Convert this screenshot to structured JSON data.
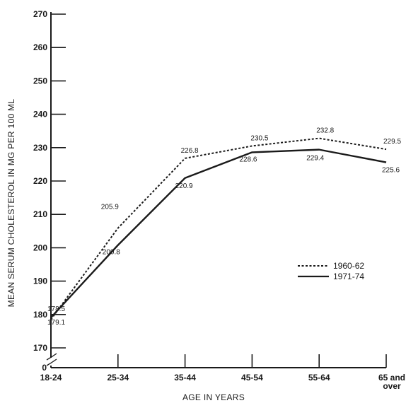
{
  "chart_data": {
    "type": "line",
    "xlabel": "AGE IN YEARS",
    "ylabel": "MEAN SERUM CHOLESTEROL IN MG PER 100 ML",
    "categories": [
      "18-24",
      "25-34",
      "35-44",
      "45-54",
      "55-64",
      "65 and over"
    ],
    "y_ticks": [
      "170",
      "180",
      "190",
      "200",
      "210",
      "220",
      "230",
      "240",
      "250",
      "260",
      "270"
    ],
    "y_zero_label": "0",
    "ylim": [
      170,
      270
    ],
    "axis_break": true,
    "grid": false,
    "legend_position": "right, middle",
    "series": [
      {
        "name": "1960-62",
        "style": "dotted",
        "values": [
          178.5,
          205.9,
          226.8,
          230.5,
          232.8,
          229.5
        ],
        "labels": [
          "178.5",
          "205.9",
          "226.8",
          "230.5",
          "232.8",
          "229.5"
        ]
      },
      {
        "name": "1971-74",
        "style": "solid",
        "values": [
          179.1,
          200.8,
          220.9,
          228.6,
          229.4,
          225.6
        ],
        "labels": [
          "179.1",
          "200.8",
          "220.9",
          "228.6",
          "229.4",
          "225.6"
        ]
      }
    ]
  }
}
